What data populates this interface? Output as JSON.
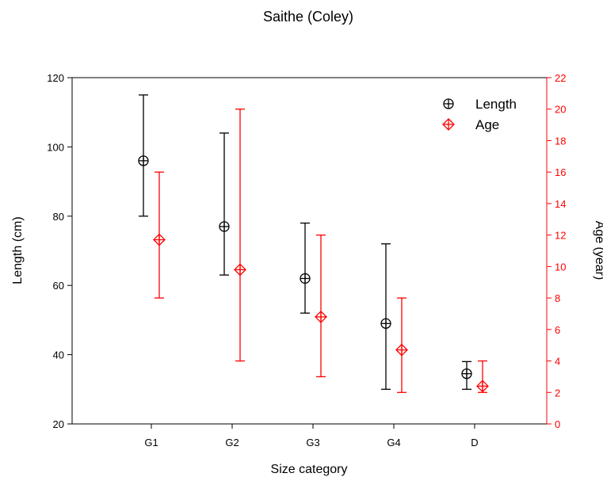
{
  "chart_data": {
    "type": "scatter",
    "title": "Saithe (Coley)",
    "xlabel": "Size category",
    "ylabel": "Length (cm)",
    "y2label": "Age (year)",
    "categories": [
      "G1",
      "G2",
      "G3",
      "G4",
      "D"
    ],
    "ylim": [
      20,
      120
    ],
    "y2lim": [
      0,
      22
    ],
    "yticks": [
      "20",
      "40",
      "60",
      "80",
      "100",
      "120"
    ],
    "y2ticks": [
      "0",
      "2",
      "4",
      "6",
      "8",
      "10",
      "12",
      "14",
      "16",
      "18",
      "20",
      "22"
    ],
    "legend_position": "top-right",
    "series": [
      {
        "name": "Length",
        "axis": "left",
        "color": "#000000",
        "marker": "circle-plus",
        "values": [
          96,
          77,
          62,
          49,
          34.5
        ],
        "lower": [
          80,
          63,
          52,
          30,
          30
        ],
        "upper": [
          115,
          104,
          78,
          72,
          38
        ]
      },
      {
        "name": "Age",
        "axis": "right",
        "color": "#ff0000",
        "marker": "diamond-plus",
        "values": [
          11.7,
          9.8,
          6.8,
          4.7,
          2.4
        ],
        "lower": [
          8,
          4,
          3,
          2,
          2
        ],
        "upper": [
          16,
          20,
          12,
          8,
          4
        ]
      }
    ]
  }
}
